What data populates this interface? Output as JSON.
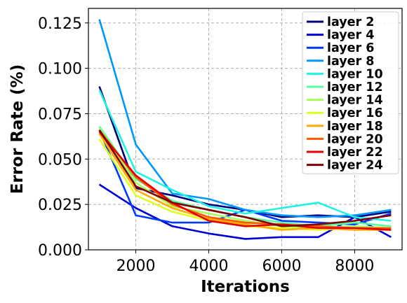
{
  "chart_data": {
    "type": "line",
    "xlabel": "Iterations",
    "ylabel": "Error Rate (%)",
    "xlim": [
      700,
      9300
    ],
    "ylim": [
      0,
      0.133
    ],
    "xticks": [
      2000,
      4000,
      6000,
      8000
    ],
    "yticks": [
      0.0,
      0.025,
      0.05,
      0.075,
      0.1,
      0.125
    ],
    "ytick_labels": [
      "0.000",
      "0.025",
      "0.050",
      "0.075",
      "0.100",
      "0.125"
    ],
    "grid": true,
    "legend_position": "top-right",
    "x": [
      1000,
      2000,
      3000,
      4000,
      5000,
      6000,
      7000,
      8000,
      9000
    ],
    "series": [
      {
        "name": "layer 2",
        "color": "#00007f",
        "values": [
          0.09,
          0.034,
          0.03,
          0.025,
          0.022,
          0.018,
          0.019,
          0.018,
          0.021
        ]
      },
      {
        "name": "layer 4",
        "color": "#0000d4",
        "values": [
          0.036,
          0.023,
          0.013,
          0.009,
          0.006,
          0.007,
          0.007,
          0.018,
          0.007
        ]
      },
      {
        "name": "layer 6",
        "color": "#0039ff",
        "values": [
          0.066,
          0.019,
          0.015,
          0.015,
          0.022,
          0.016,
          0.015,
          0.014,
          0.02
        ]
      },
      {
        "name": "layer 8",
        "color": "#0096ff",
        "values": [
          0.127,
          0.058,
          0.031,
          0.028,
          0.022,
          0.019,
          0.018,
          0.019,
          0.022
        ]
      },
      {
        "name": "layer 10",
        "color": "#1ff3e1",
        "values": [
          0.088,
          0.043,
          0.033,
          0.024,
          0.02,
          0.023,
          0.026,
          0.018,
          0.016
        ]
      },
      {
        "name": "layer 12",
        "color": "#58ffa4",
        "values": [
          0.068,
          0.039,
          0.027,
          0.022,
          0.018,
          0.015,
          0.013,
          0.015,
          0.013
        ]
      },
      {
        "name": "layer 14",
        "color": "#a4ff58",
        "values": [
          0.067,
          0.037,
          0.024,
          0.02,
          0.016,
          0.013,
          0.012,
          0.013,
          0.012
        ]
      },
      {
        "name": "layer 16",
        "color": "#e1ff1f",
        "values": [
          0.061,
          0.03,
          0.021,
          0.016,
          0.013,
          0.012,
          0.011,
          0.012,
          0.011
        ]
      },
      {
        "name": "layer 18",
        "color": "#ffab00",
        "values": [
          0.064,
          0.033,
          0.023,
          0.017,
          0.014,
          0.011,
          0.012,
          0.011,
          0.011
        ]
      },
      {
        "name": "layer 20",
        "color": "#ff5a00",
        "values": [
          0.066,
          0.04,
          0.025,
          0.018,
          0.015,
          0.014,
          0.013,
          0.012,
          0.012
        ]
      },
      {
        "name": "layer 22",
        "color": "#e40000",
        "values": [
          0.065,
          0.041,
          0.026,
          0.016,
          0.013,
          0.014,
          0.012,
          0.012,
          0.011
        ]
      },
      {
        "name": "layer 24",
        "color": "#7f0000",
        "values": [
          0.066,
          0.035,
          0.026,
          0.022,
          0.018,
          0.013,
          0.014,
          0.016,
          0.019
        ]
      }
    ]
  }
}
